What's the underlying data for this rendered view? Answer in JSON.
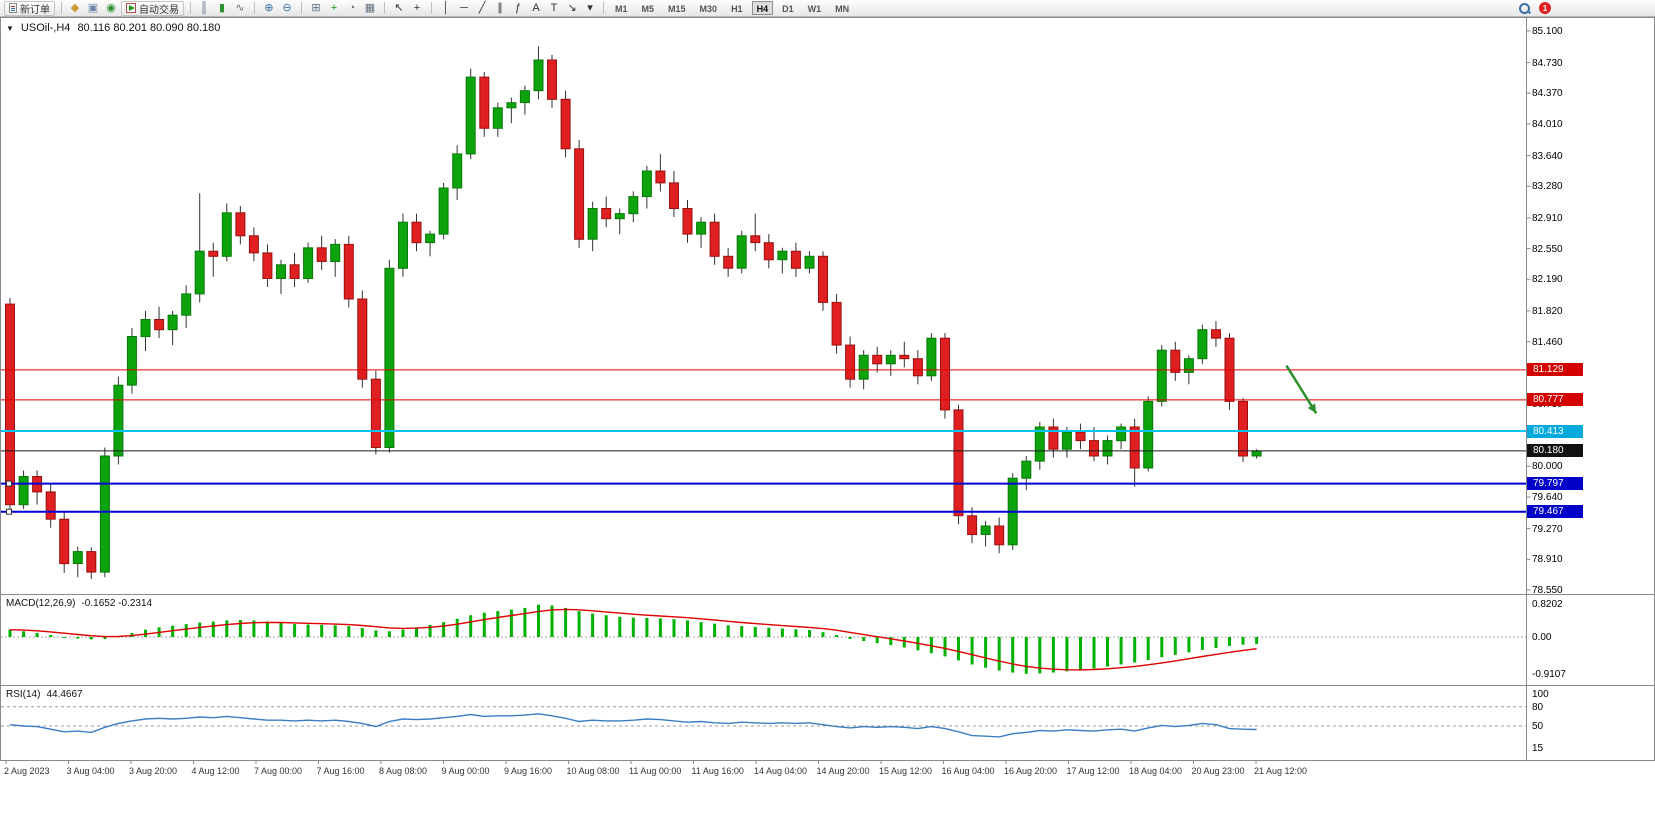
{
  "toolbar": {
    "new_order_label": "新订单",
    "auto_trading_label": "自动交易",
    "notification_count": "1",
    "active_timeframe": "H4",
    "timeframes": [
      "M1",
      "M5",
      "M15",
      "M30",
      "H1",
      "H4",
      "D1",
      "W1",
      "MN"
    ],
    "icon_groups": [
      {
        "icons": [
          {
            "name": "editor-icon",
            "glyph": "◆",
            "color": "#c8972f"
          },
          {
            "name": "alerts-icon",
            "glyph": "▣",
            "color": "#6d84a8"
          },
          {
            "name": "community-icon",
            "glyph": "◉",
            "color": "#2f8f2f"
          }
        ]
      },
      {
        "icons": [
          {
            "name": "bar-chart-icon",
            "glyph": "║",
            "color": "#607080"
          },
          {
            "name": "candlestick-chart-icon",
            "glyph": "▮",
            "color": "#2f8f2f"
          },
          {
            "name": "line-chart-icon",
            "glyph": "∿",
            "color": "#607080"
          }
        ]
      },
      {
        "icons": [
          {
            "name": "zoom-in-icon",
            "glyph": "⊕",
            "color": "#3a6ea5"
          },
          {
            "name": "zoom-out-icon",
            "glyph": "⊖",
            "color": "#3a6ea5"
          }
        ]
      },
      {
        "icons": [
          {
            "name": "tile-windows-icon",
            "glyph": "⊞",
            "color": "#607080"
          },
          {
            "name": "indicators-icon",
            "glyph": "+",
            "color": "#1d9a1d"
          },
          {
            "name": "periods-icon",
            "glyph": "◔",
            "color": "#607080"
          },
          {
            "name": "templates-icon",
            "glyph": "▦",
            "color": "#607080"
          }
        ]
      },
      {
        "icons": [
          {
            "name": "cursor-icon",
            "glyph": "↖",
            "color": "#333333"
          },
          {
            "name": "crosshair-icon",
            "glyph": "+",
            "color": "#333333"
          }
        ]
      },
      {
        "icons": [
          {
            "name": "vertical-line-icon",
            "glyph": "│",
            "color": "#333333"
          },
          {
            "name": "horizontal-line-icon",
            "glyph": "─",
            "color": "#333333"
          },
          {
            "name": "trendline-icon",
            "glyph": "╱",
            "color": "#333333"
          },
          {
            "name": "channel-icon",
            "glyph": "∥",
            "color": "#333333"
          },
          {
            "name": "fibonacci-icon",
            "glyph": "ƒ",
            "color": "#333333"
          },
          {
            "name": "text-icon",
            "glyph": "A",
            "color": "#333333"
          },
          {
            "name": "label-icon",
            "glyph": "T",
            "color": "#333333"
          },
          {
            "name": "arrow-tool-icon",
            "glyph": "↘",
            "color": "#333333"
          },
          {
            "name": "dropdown-arrow-icon",
            "glyph": "▾",
            "color": "#333333"
          }
        ]
      }
    ]
  },
  "chart": {
    "one_click_glyph": "▼"
  },
  "chart_data": [
    {
      "type": "candlestick",
      "title": "USOil-,H4",
      "ohlc_text": "80.116 80.201 80.090 80.180",
      "ylim": [
        78.55,
        85.1
      ],
      "colors": {
        "bull": "#0ca30c",
        "bear": "#e02020",
        "wick": "#333333"
      },
      "price_scale": [
        "85.100",
        "84.730",
        "84.370",
        "84.010",
        "83.640",
        "83.280",
        "82.910",
        "82.550",
        "82.190",
        "81.820",
        "81.460",
        "81.090",
        "80.730",
        "80.370",
        "80.000",
        "79.640",
        "79.270",
        "78.910",
        "78.550"
      ],
      "levels": [
        {
          "price": 81.129,
          "label": "81.129",
          "color": "#e00000",
          "badge": "#d40000",
          "width": 1,
          "selected": false
        },
        {
          "price": 80.777,
          "label": "80.777",
          "color": "#e00000",
          "badge": "#d40000",
          "width": 1,
          "selected": false
        },
        {
          "price": 80.413,
          "label": "80.413",
          "color": "#00c3f5",
          "badge": "#00aadd",
          "width": 2,
          "selected": false
        },
        {
          "price": 80.18,
          "label": "80.180",
          "color": "#1a1a1a",
          "badge": "#111111",
          "width": 1,
          "selected": false
        },
        {
          "price": 79.797,
          "label": "79.797",
          "color": "#0000d8",
          "badge": "#0000c8",
          "width": 2,
          "selected": true
        },
        {
          "price": 79.467,
          "label": "79.467",
          "color": "#0000d8",
          "badge": "#0000c8",
          "width": 2,
          "selected": true
        }
      ],
      "arrow": {
        "start_bar": 94.2,
        "start_price": 81.18,
        "end_bar": 96.4,
        "end_price": 80.62,
        "color": "#2f8f2f"
      },
      "time_labels": [
        "2 Aug 2023",
        "3 Aug 04:00",
        "3 Aug 20:00",
        "4 Aug 12:00",
        "7 Aug 00:00",
        "7 Aug 16:00",
        "8 Aug 08:00",
        "9 Aug 00:00",
        "9 Aug 16:00",
        "10 Aug 08:00",
        "11 Aug 00:00",
        "11 Aug 16:00",
        "14 Aug 04:00",
        "14 Aug 20:00",
        "15 Aug 12:00",
        "16 Aug 04:00",
        "16 Aug 20:00",
        "17 Aug 12:00",
        "18 Aug 04:00",
        "20 Aug 23:00",
        "21 Aug 12:00"
      ],
      "candles": [
        [
          81.9,
          81.97,
          79.45,
          79.55
        ],
        [
          79.55,
          79.95,
          79.5,
          79.88
        ],
        [
          79.88,
          79.95,
          79.55,
          79.7
        ],
        [
          79.7,
          79.8,
          79.28,
          79.38
        ],
        [
          79.38,
          79.48,
          78.75,
          78.86
        ],
        [
          78.86,
          79.06,
          78.7,
          79.0
        ],
        [
          79.0,
          79.05,
          78.68,
          78.76
        ],
        [
          78.76,
          80.22,
          78.7,
          80.12
        ],
        [
          80.12,
          81.05,
          80.02,
          80.95
        ],
        [
          80.95,
          81.62,
          80.85,
          81.52
        ],
        [
          81.52,
          81.82,
          81.35,
          81.72
        ],
        [
          81.72,
          81.87,
          81.5,
          81.6
        ],
        [
          81.6,
          81.82,
          81.42,
          81.77
        ],
        [
          81.77,
          82.12,
          81.62,
          82.02
        ],
        [
          82.02,
          83.2,
          81.92,
          82.52
        ],
        [
          82.52,
          82.62,
          82.22,
          82.46
        ],
        [
          82.46,
          83.08,
          82.4,
          82.97
        ],
        [
          82.97,
          83.05,
          82.6,
          82.7
        ],
        [
          82.7,
          82.8,
          82.4,
          82.5
        ],
        [
          82.5,
          82.6,
          82.1,
          82.2
        ],
        [
          82.2,
          82.42,
          82.02,
          82.36
        ],
        [
          82.36,
          82.5,
          82.1,
          82.2
        ],
        [
          82.2,
          82.62,
          82.15,
          82.56
        ],
        [
          82.56,
          82.7,
          82.3,
          82.4
        ],
        [
          82.4,
          82.66,
          82.22,
          82.6
        ],
        [
          82.6,
          82.7,
          81.86,
          81.96
        ],
        [
          81.96,
          82.06,
          80.92,
          81.02
        ],
        [
          81.02,
          81.12,
          80.14,
          80.22
        ],
        [
          80.22,
          82.42,
          80.16,
          82.32
        ],
        [
          82.32,
          82.96,
          82.22,
          82.86
        ],
        [
          82.86,
          82.96,
          82.52,
          82.62
        ],
        [
          82.62,
          82.76,
          82.46,
          82.72
        ],
        [
          82.72,
          83.32,
          82.66,
          83.26
        ],
        [
          83.26,
          83.76,
          83.12,
          83.66
        ],
        [
          83.66,
          84.66,
          83.6,
          84.56
        ],
        [
          84.56,
          84.62,
          83.86,
          83.96
        ],
        [
          83.96,
          84.26,
          83.86,
          84.2
        ],
        [
          84.2,
          84.32,
          84.02,
          84.26
        ],
        [
          84.26,
          84.46,
          84.12,
          84.4
        ],
        [
          84.4,
          84.92,
          84.3,
          84.76
        ],
        [
          84.76,
          84.82,
          84.2,
          84.3
        ],
        [
          84.3,
          84.4,
          83.62,
          83.72
        ],
        [
          83.72,
          83.82,
          82.56,
          82.66
        ],
        [
          82.66,
          83.1,
          82.52,
          83.02
        ],
        [
          83.02,
          83.16,
          82.8,
          82.9
        ],
        [
          82.9,
          83.02,
          82.72,
          82.96
        ],
        [
          82.96,
          83.22,
          82.86,
          83.16
        ],
        [
          83.16,
          83.52,
          83.02,
          83.46
        ],
        [
          83.46,
          83.66,
          83.22,
          83.32
        ],
        [
          83.32,
          83.46,
          82.92,
          83.02
        ],
        [
          83.02,
          83.12,
          82.62,
          82.72
        ],
        [
          82.72,
          82.92,
          82.56,
          82.86
        ],
        [
          82.86,
          82.96,
          82.36,
          82.46
        ],
        [
          82.46,
          82.56,
          82.22,
          82.32
        ],
        [
          82.32,
          82.76,
          82.26,
          82.7
        ],
        [
          82.7,
          82.96,
          82.52,
          82.62
        ],
        [
          82.62,
          82.72,
          82.32,
          82.42
        ],
        [
          82.42,
          82.56,
          82.26,
          82.52
        ],
        [
          82.52,
          82.62,
          82.22,
          82.32
        ],
        [
          82.32,
          82.52,
          82.26,
          82.46
        ],
        [
          82.46,
          82.52,
          81.82,
          81.92
        ],
        [
          81.92,
          82.02,
          81.32,
          81.42
        ],
        [
          81.42,
          81.52,
          80.92,
          81.02
        ],
        [
          81.02,
          81.36,
          80.9,
          81.3
        ],
        [
          81.3,
          81.4,
          81.1,
          81.2
        ],
        [
          81.2,
          81.36,
          81.06,
          81.3
        ],
        [
          81.3,
          81.46,
          81.16,
          81.26
        ],
        [
          81.26,
          81.36,
          80.96,
          81.06
        ],
        [
          81.06,
          81.56,
          81.0,
          81.5
        ],
        [
          81.5,
          81.56,
          80.56,
          80.66
        ],
        [
          80.66,
          80.72,
          79.32,
          79.42
        ],
        [
          79.42,
          79.52,
          79.1,
          79.2
        ],
        [
          79.2,
          79.36,
          79.06,
          79.3
        ],
        [
          79.3,
          79.4,
          78.98,
          79.08
        ],
        [
          79.08,
          79.92,
          79.02,
          79.86
        ],
        [
          79.86,
          80.12,
          79.72,
          80.06
        ],
        [
          80.06,
          80.52,
          79.96,
          80.46
        ],
        [
          80.46,
          80.56,
          80.1,
          80.2
        ],
        [
          80.2,
          80.46,
          80.1,
          80.4
        ],
        [
          80.4,
          80.5,
          80.2,
          80.3
        ],
        [
          80.3,
          80.46,
          80.06,
          80.12
        ],
        [
          80.12,
          80.36,
          80.02,
          80.3
        ],
        [
          80.3,
          80.5,
          80.2,
          80.46
        ],
        [
          80.46,
          80.56,
          79.76,
          79.98
        ],
        [
          79.98,
          80.82,
          79.94,
          80.76
        ],
        [
          80.76,
          81.42,
          80.7,
          81.36
        ],
        [
          81.36,
          81.46,
          81.0,
          81.1
        ],
        [
          81.1,
          81.3,
          80.96,
          81.26
        ],
        [
          81.26,
          81.66,
          81.2,
          81.6
        ],
        [
          81.6,
          81.7,
          81.4,
          81.5
        ],
        [
          81.5,
          81.56,
          80.66,
          80.76
        ],
        [
          80.76,
          80.8,
          80.05,
          80.12
        ],
        [
          80.12,
          80.2,
          80.09,
          80.18
        ]
      ]
    },
    {
      "type": "bar",
      "name": "MACD(12,26,9)",
      "values_text": "-0.1652 -0.2314",
      "color": "#00b200",
      "signal_color": "#e00000",
      "ylim": [
        -0.9107,
        0.8202
      ],
      "scale": [
        {
          "t": "0.8202",
          "v": 0.8202
        },
        {
          "t": "0.00",
          "v": 0
        },
        {
          "t": "-0.9107",
          "v": -0.9107
        }
      ],
      "values": [
        0.18,
        0.14,
        0.1,
        0.05,
        0.0,
        -0.04,
        -0.06,
        -0.05,
        0.02,
        0.1,
        0.18,
        0.24,
        0.28,
        0.32,
        0.36,
        0.38,
        0.41,
        0.42,
        0.41,
        0.38,
        0.35,
        0.32,
        0.31,
        0.3,
        0.29,
        0.27,
        0.22,
        0.16,
        0.14,
        0.18,
        0.24,
        0.3,
        0.37,
        0.45,
        0.54,
        0.6,
        0.64,
        0.68,
        0.72,
        0.8,
        0.78,
        0.72,
        0.64,
        0.58,
        0.54,
        0.5,
        0.48,
        0.47,
        0.46,
        0.44,
        0.41,
        0.37,
        0.33,
        0.29,
        0.27,
        0.25,
        0.23,
        0.21,
        0.19,
        0.17,
        0.12,
        0.05,
        -0.05,
        -0.1,
        -0.15,
        -0.2,
        -0.26,
        -0.33,
        -0.4,
        -0.48,
        -0.58,
        -0.68,
        -0.76,
        -0.83,
        -0.88,
        -0.91,
        -0.9,
        -0.88,
        -0.85,
        -0.82,
        -0.78,
        -0.73,
        -0.68,
        -0.63,
        -0.57,
        -0.5,
        -0.44,
        -0.38,
        -0.32,
        -0.27,
        -0.22,
        -0.19,
        -0.17
      ]
    },
    {
      "type": "line",
      "name": "RSI(14)",
      "value_text": "44.4667",
      "color": "#3b7dc4",
      "ylim": [
        0,
        100
      ],
      "level_lines": [
        80,
        50
      ],
      "scale": [
        {
          "t": "100",
          "v": 100
        },
        {
          "t": "80",
          "v": 80
        },
        {
          "t": "50",
          "v": 50
        },
        {
          "t": "15",
          "v": 15
        }
      ],
      "values": [
        52,
        50,
        49,
        45,
        41,
        42,
        40,
        48,
        54,
        58,
        61,
        62,
        61,
        62,
        64,
        63,
        65,
        63,
        61,
        59,
        59,
        58,
        59,
        58,
        59,
        57,
        54,
        49,
        57,
        61,
        60,
        61,
        63,
        65,
        68,
        65,
        66,
        66,
        67,
        69,
        66,
        62,
        57,
        59,
        58,
        58,
        59,
        61,
        60,
        58,
        56,
        57,
        55,
        54,
        56,
        55,
        54,
        55,
        54,
        55,
        52,
        49,
        47,
        49,
        48,
        49,
        48,
        46,
        49,
        46,
        41,
        35,
        34,
        33,
        38,
        40,
        43,
        42,
        44,
        43,
        42,
        44,
        45,
        42,
        47,
        51,
        49,
        51,
        54,
        52,
        46,
        45,
        44.47
      ]
    }
  ]
}
